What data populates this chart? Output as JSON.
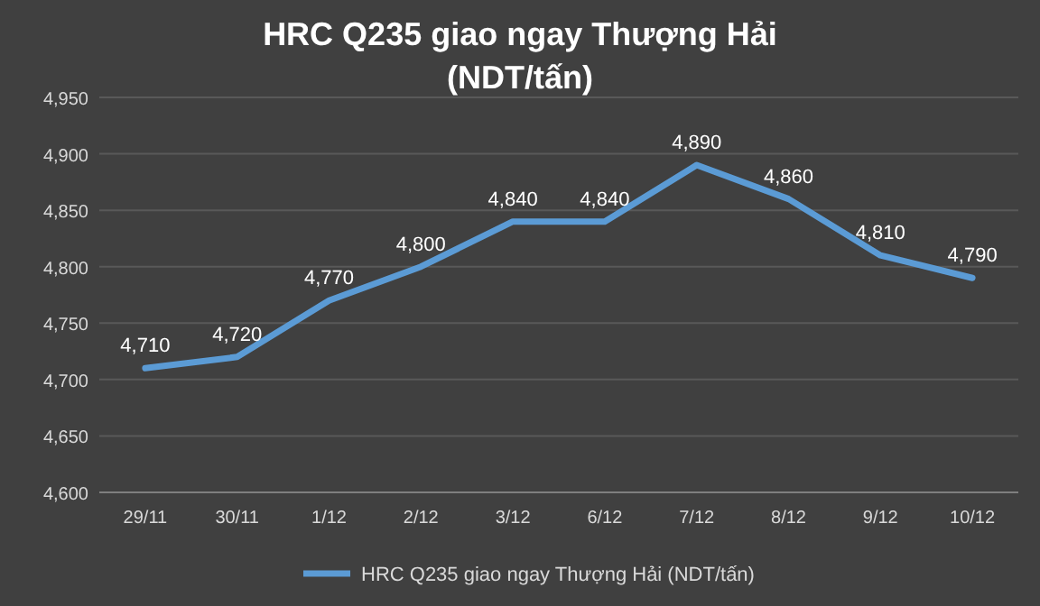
{
  "chart_data": {
    "type": "line",
    "title": "HRC Q235 giao ngay Thượng Hải\n(NDT/tấn)",
    "categories": [
      "29/11",
      "30/11",
      "1/12",
      "2/12",
      "3/12",
      "6/12",
      "7/12",
      "8/12",
      "9/12",
      "10/12"
    ],
    "series": [
      {
        "name": "HRC Q235 giao ngay Thượng Hải (NDT/tấn)",
        "color": "#5b9bd5",
        "values": [
          4710,
          4720,
          4770,
          4800,
          4840,
          4840,
          4890,
          4860,
          4810,
          4790
        ],
        "value_labels": [
          "4,710",
          "4,720",
          "4,770",
          "4,800",
          "4,840",
          "4,840",
          "4,890",
          "4,860",
          "4,810",
          "4,790"
        ]
      }
    ],
    "ylim": [
      4600,
      4950
    ],
    "yticks": [
      {
        "value": 4600,
        "label": "4,600"
      },
      {
        "value": 4650,
        "label": "4,650"
      },
      {
        "value": 4700,
        "label": "4,700"
      },
      {
        "value": 4750,
        "label": "4,750"
      },
      {
        "value": 4800,
        "label": "4,800"
      },
      {
        "value": 4850,
        "label": "4,850"
      },
      {
        "value": 4900,
        "label": "4,900"
      },
      {
        "value": 4950,
        "label": "4,950"
      }
    ],
    "grid": "y",
    "legend": "bottom",
    "marker": "none",
    "line_style": "solid"
  }
}
